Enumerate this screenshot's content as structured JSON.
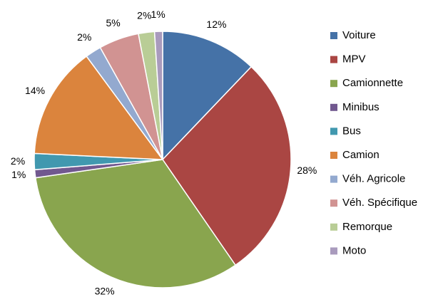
{
  "chart_data": {
    "type": "pie",
    "categories": [
      "Voiture",
      "MPV",
      "Camionnette",
      "Minibus",
      "Bus",
      "Camion",
      "Véh. Agricole",
      "Véh. Spécifique",
      "Remorque",
      "Moto"
    ],
    "values": [
      12,
      28,
      32,
      1,
      2,
      14,
      2,
      5,
      2,
      1
    ],
    "value_labels": [
      "12%",
      "28%",
      "32%",
      "1%",
      "2%",
      "14%",
      "2%",
      "5%",
      "2%",
      "1%"
    ],
    "colors": [
      "#4572a7",
      "#aa4643",
      "#89a54e",
      "#71588f",
      "#4198af",
      "#db843d",
      "#93a9cf",
      "#d19392",
      "#b9cd96",
      "#a99bbd"
    ],
    "legend": "right"
  }
}
